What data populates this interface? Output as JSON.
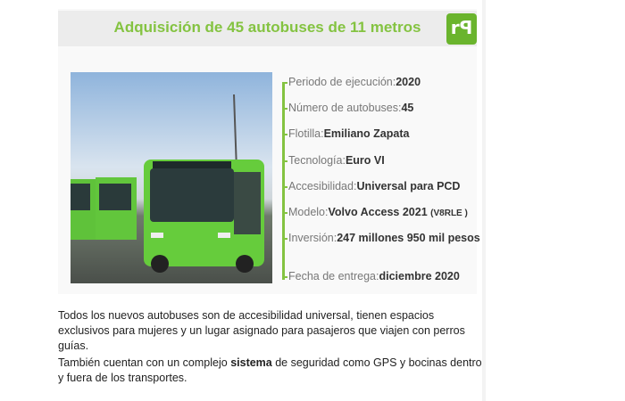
{
  "card": {
    "title": "Adquisición de 45 autobuses de 11 metros",
    "logo_text": "rtp",
    "brand_color": "#84c341",
    "facts": [
      {
        "label": "Periodo de ejecución:",
        "value": "2020"
      },
      {
        "label": "Número de autobuses:",
        "value": "45"
      },
      {
        "label": "Flotilla:",
        "value": "Emiliano Zapata"
      },
      {
        "label": "Tecnología:",
        "value": "Euro VI"
      },
      {
        "label": "Accesibilidad:",
        "value": "Universal para PCD"
      },
      {
        "label": "Modelo:",
        "value": "Volvo Access 2021",
        "note": "(V8RLE )"
      },
      {
        "label": "Inversión:",
        "value": "247 millones 950 mil pesos"
      },
      {
        "label": "Fecha de entrega:",
        "value": "diciembre 2020"
      }
    ]
  },
  "body": {
    "p1": "Todos los nuevos autobuses son de accesibilidad universal, tienen espacios exclusivos para mujeres y un lugar asignado para pasajeros que viajen con perros guías.",
    "p2_before": "También cuentan con un complejo ",
    "p2_bold": "sistema",
    "p2_after": " de seguridad como GPS y bocinas dentro y fuera de los transportes."
  }
}
